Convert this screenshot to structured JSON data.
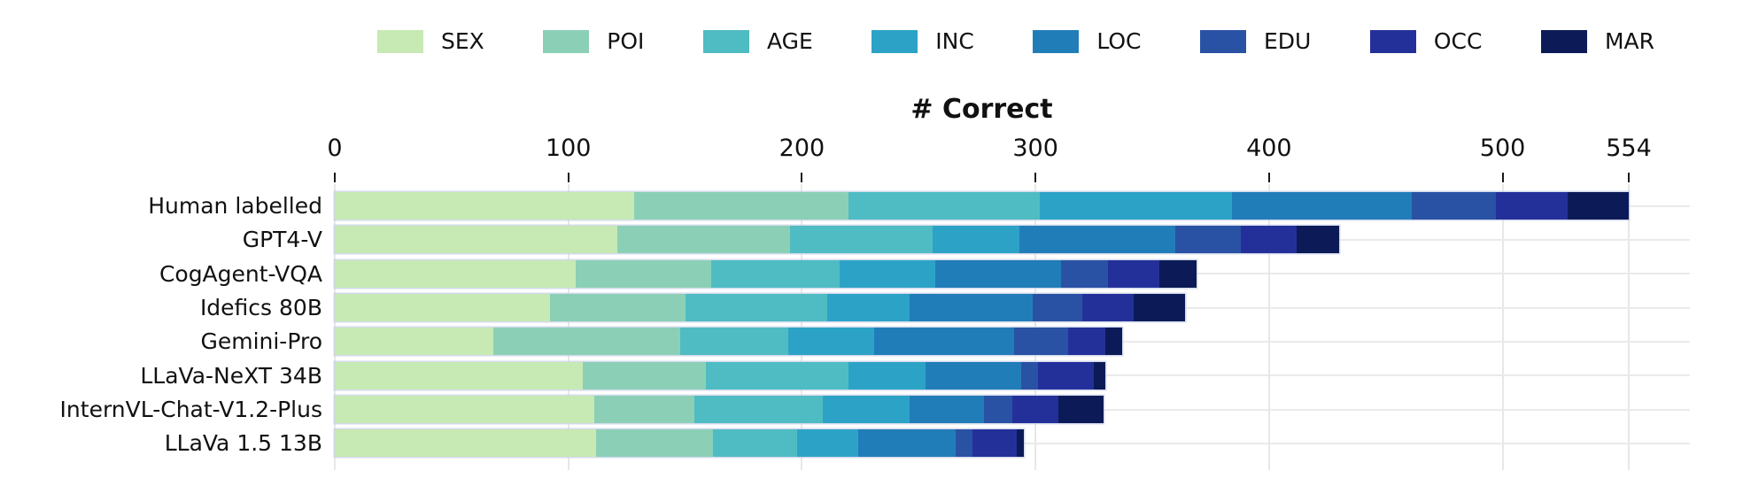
{
  "chart_data": {
    "type": "bar",
    "subtype": "horizontal-stacked",
    "title": "# Correct",
    "xlabel": "# Correct",
    "ylabel": "",
    "xlim": [
      0,
      554
    ],
    "x_ticks": [
      0,
      100,
      200,
      300,
      400,
      500,
      554
    ],
    "grid": true,
    "legend_position": "top",
    "legend": [
      "SEX",
      "POI",
      "AGE",
      "INC",
      "LOC",
      "EDU",
      "OCC",
      "MAR"
    ],
    "colors": [
      "#c7e9b4",
      "#8bd0b6",
      "#4fbcc3",
      "#2ca3c6",
      "#217db8",
      "#2a52a4",
      "#24309a",
      "#0c1b58"
    ],
    "rows": [
      {
        "label": "Human labelled",
        "values": [
          128,
          92,
          82,
          82,
          77,
          36,
          31,
          26
        ]
      },
      {
        "label": "GPT4-V",
        "values": [
          121,
          74,
          61,
          37,
          67,
          28,
          24,
          18
        ]
      },
      {
        "label": "CogAgent-VQA",
        "values": [
          103,
          58,
          55,
          41,
          54,
          20,
          22,
          16
        ]
      },
      {
        "label": "Idefics 80B",
        "values": [
          92,
          58,
          61,
          35,
          53,
          21,
          22,
          22
        ]
      },
      {
        "label": "Gemini-Pro",
        "values": [
          68,
          80,
          46,
          37,
          60,
          23,
          16,
          7
        ]
      },
      {
        "label": "LLaVa-NeXT 34B",
        "values": [
          106,
          53,
          61,
          33,
          41,
          7,
          24,
          5
        ]
      },
      {
        "label": "InternVL-Chat-V1.2-Plus",
        "values": [
          111,
          43,
          55,
          37,
          32,
          12,
          20,
          19
        ]
      },
      {
        "label": "LLaVa 1.5 13B",
        "values": [
          112,
          50,
          36,
          26,
          42,
          7,
          19,
          3
        ]
      }
    ]
  }
}
